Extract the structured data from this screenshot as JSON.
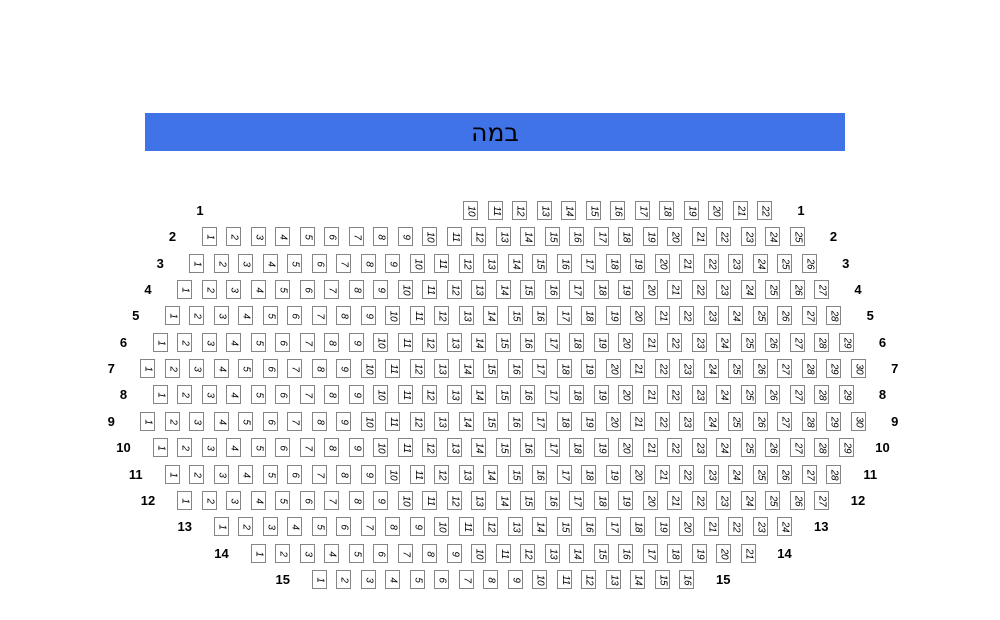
{
  "stage": {
    "label": "במה",
    "color": "#4173E8"
  },
  "colors": {
    "stage_background": "#4173E8",
    "seat_border": "#858585",
    "seat_fill": "#FFFFFF",
    "text": "#000000"
  },
  "seat_map": {
    "rows": [
      {
        "label": "1",
        "seats": [
          10,
          11,
          12,
          13,
          14,
          15,
          16,
          17,
          18,
          19,
          20,
          21,
          22
        ]
      },
      {
        "label": "2",
        "seats": [
          1,
          2,
          3,
          4,
          5,
          6,
          7,
          8,
          9,
          10,
          11,
          12,
          13,
          14,
          15,
          16,
          17,
          18,
          19,
          20,
          21,
          22,
          23,
          24,
          25
        ]
      },
      {
        "label": "3",
        "seats": [
          1,
          2,
          3,
          4,
          5,
          6,
          7,
          8,
          9,
          10,
          11,
          12,
          13,
          14,
          15,
          16,
          17,
          18,
          19,
          20,
          21,
          22,
          23,
          24,
          25,
          26
        ]
      },
      {
        "label": "4",
        "seats": [
          1,
          2,
          3,
          4,
          5,
          6,
          7,
          8,
          9,
          10,
          11,
          12,
          13,
          14,
          15,
          16,
          17,
          18,
          19,
          20,
          21,
          22,
          23,
          24,
          25,
          26,
          27
        ]
      },
      {
        "label": "5",
        "seats": [
          1,
          2,
          3,
          4,
          5,
          6,
          7,
          8,
          9,
          10,
          11,
          12,
          13,
          14,
          15,
          16,
          17,
          18,
          19,
          20,
          21,
          22,
          23,
          24,
          25,
          26,
          27,
          28
        ]
      },
      {
        "label": "6",
        "seats": [
          1,
          2,
          3,
          4,
          5,
          6,
          7,
          8,
          9,
          10,
          11,
          12,
          13,
          14,
          15,
          16,
          17,
          18,
          19,
          20,
          21,
          22,
          23,
          24,
          25,
          26,
          27,
          28,
          29
        ]
      },
      {
        "label": "7",
        "seats": [
          1,
          2,
          3,
          4,
          5,
          6,
          7,
          8,
          9,
          10,
          11,
          12,
          13,
          14,
          15,
          16,
          17,
          18,
          19,
          20,
          21,
          22,
          23,
          24,
          25,
          26,
          27,
          28,
          29,
          30
        ]
      },
      {
        "label": "8",
        "seats": [
          1,
          2,
          3,
          4,
          5,
          6,
          7,
          8,
          9,
          10,
          11,
          12,
          13,
          14,
          15,
          16,
          17,
          18,
          19,
          20,
          21,
          22,
          23,
          24,
          25,
          26,
          27,
          28,
          29
        ]
      },
      {
        "label": "9",
        "seats": [
          1,
          2,
          3,
          4,
          5,
          6,
          7,
          8,
          9,
          10,
          11,
          12,
          13,
          14,
          15,
          16,
          17,
          18,
          19,
          20,
          21,
          22,
          23,
          24,
          25,
          26,
          27,
          28,
          29,
          30
        ]
      },
      {
        "label": "10",
        "seats": [
          1,
          2,
          3,
          4,
          5,
          6,
          7,
          8,
          9,
          10,
          11,
          12,
          13,
          14,
          15,
          16,
          17,
          18,
          19,
          20,
          21,
          22,
          23,
          24,
          25,
          26,
          27,
          28,
          29
        ]
      },
      {
        "label": "11",
        "seats": [
          1,
          2,
          3,
          4,
          5,
          6,
          7,
          8,
          9,
          10,
          11,
          12,
          13,
          14,
          15,
          16,
          17,
          18,
          19,
          20,
          21,
          22,
          23,
          24,
          25,
          26,
          27,
          28
        ]
      },
      {
        "label": "12",
        "seats": [
          1,
          2,
          3,
          4,
          5,
          6,
          7,
          8,
          9,
          10,
          11,
          12,
          13,
          14,
          15,
          16,
          17,
          18,
          19,
          20,
          21,
          22,
          23,
          24,
          25,
          26,
          27
        ]
      },
      {
        "label": "13",
        "seats": [
          1,
          2,
          3,
          4,
          5,
          6,
          7,
          8,
          9,
          10,
          11,
          12,
          13,
          14,
          15,
          16,
          17,
          18,
          19,
          20,
          21,
          22,
          23,
          24
        ]
      },
      {
        "label": "14",
        "seats": [
          1,
          2,
          3,
          4,
          5,
          6,
          7,
          8,
          9,
          10,
          11,
          12,
          13,
          14,
          15,
          16,
          17,
          18,
          19,
          20,
          21
        ]
      },
      {
        "label": "15",
        "seats": [
          1,
          2,
          3,
          4,
          5,
          6,
          7,
          8,
          9,
          10,
          11,
          12,
          13,
          14,
          15,
          16
        ]
      }
    ]
  }
}
